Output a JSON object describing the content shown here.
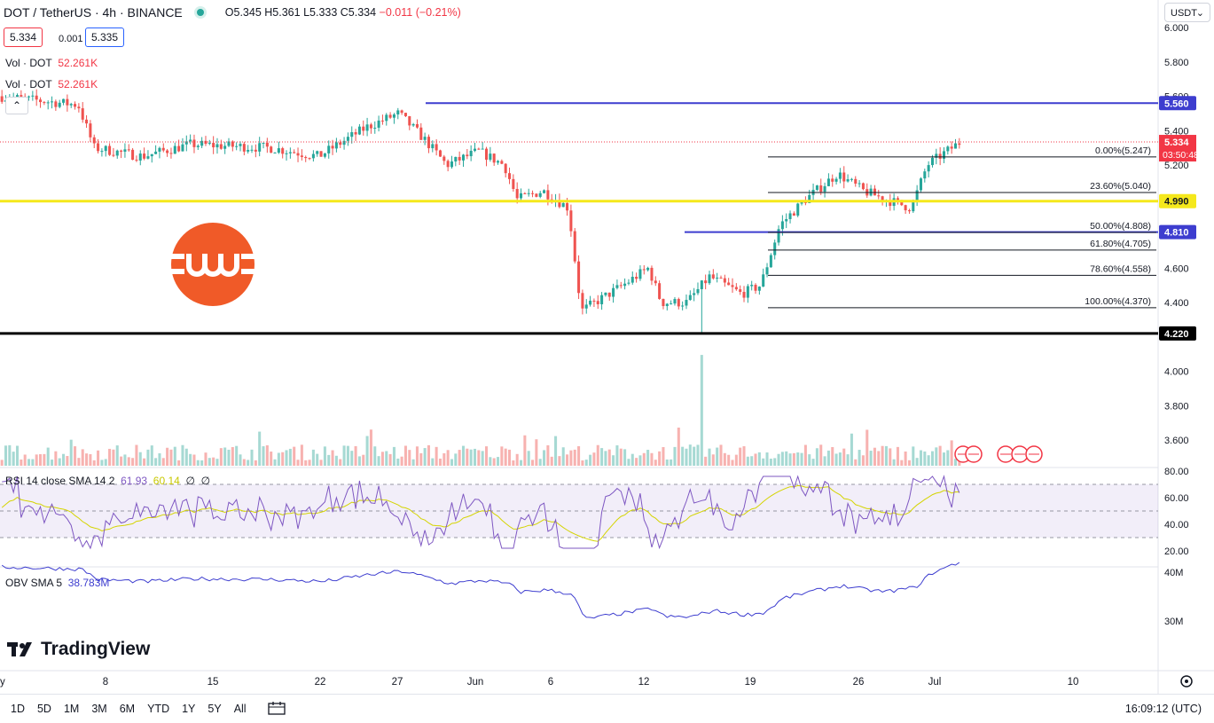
{
  "header": {
    "symbol": "DOT / TetherUS · 4h · BINANCE",
    "open": "O5.345",
    "high": "H5.361",
    "low": "L5.333",
    "close": "C5.334",
    "change": "−0.011 (−0.21%)"
  },
  "trade": {
    "sell": "5.334",
    "spread": "0.001",
    "buy": "5.335"
  },
  "volume_legend": [
    {
      "label": "Vol · DOT",
      "value": "52.261K"
    },
    {
      "label": "Vol · DOT",
      "value": "52.261K"
    }
  ],
  "collapse_icon": "chevron-up-icon",
  "currency_select": "USDT",
  "price_axis": [
    "6.000",
    "5.800",
    "5.600",
    "5.400",
    "5.200",
    "4.600",
    "4.400",
    "4.000",
    "3.800",
    "3.600"
  ],
  "price_axis_values": [
    6.0,
    5.8,
    5.6,
    5.4,
    5.2,
    4.6,
    4.4,
    4.0,
    3.8,
    3.6
  ],
  "horizontal_levels": [
    {
      "label": "5.560",
      "value": 5.56,
      "color": "#3d3dcf"
    },
    {
      "label": "4.990",
      "value": 4.99,
      "color": "#f5e81c"
    },
    {
      "label": "4.810",
      "value": 4.81,
      "color": "#3d3dcf"
    },
    {
      "label": "4.220",
      "value": 4.22,
      "color": "#000000"
    }
  ],
  "last_price": {
    "value": "5.334",
    "countdown": "03:50:48",
    "color": "#f23645"
  },
  "fib_levels": [
    {
      "label": "0.00%(5.247)",
      "value": 5.247
    },
    {
      "label": "23.60%(5.040)",
      "value": 5.04
    },
    {
      "label": "50.00%(4.808)",
      "value": 4.808
    },
    {
      "label": "61.80%(4.705)",
      "value": 4.705
    },
    {
      "label": "78.60%(4.558)",
      "value": 4.558
    },
    {
      "label": "100.00%(4.370)",
      "value": 4.37
    }
  ],
  "x_axis": [
    "8",
    "15",
    "22",
    "27",
    "Jun",
    "6",
    "12",
    "19",
    "26",
    "Jul",
    "10"
  ],
  "rsi": {
    "legend": "RSI 14 close SMA 14 2",
    "rsi_value": "61.93",
    "sma_value": "60.14",
    "z1": "∅",
    "z2": "∅",
    "axis": [
      "80.00",
      "60.00",
      "40.00",
      "20.00"
    ]
  },
  "obv": {
    "legend": "OBV SMA 5",
    "value": "38.783M",
    "axis": [
      "40M",
      "30M"
    ]
  },
  "brand": "TradingView",
  "timeframes": [
    "1D",
    "5D",
    "1M",
    "3M",
    "6M",
    "YTD",
    "1Y",
    "5Y",
    "All"
  ],
  "clock": "16:09:12 (UTC)",
  "settings_icon": "gear-icon",
  "calendar_icon": "calendar-range-icon",
  "colors": {
    "up": "#26a69a",
    "down": "#ef5350",
    "rsi": "#7e57c2",
    "obv": "#3d3dcf",
    "logo": "#f05a28"
  }
}
